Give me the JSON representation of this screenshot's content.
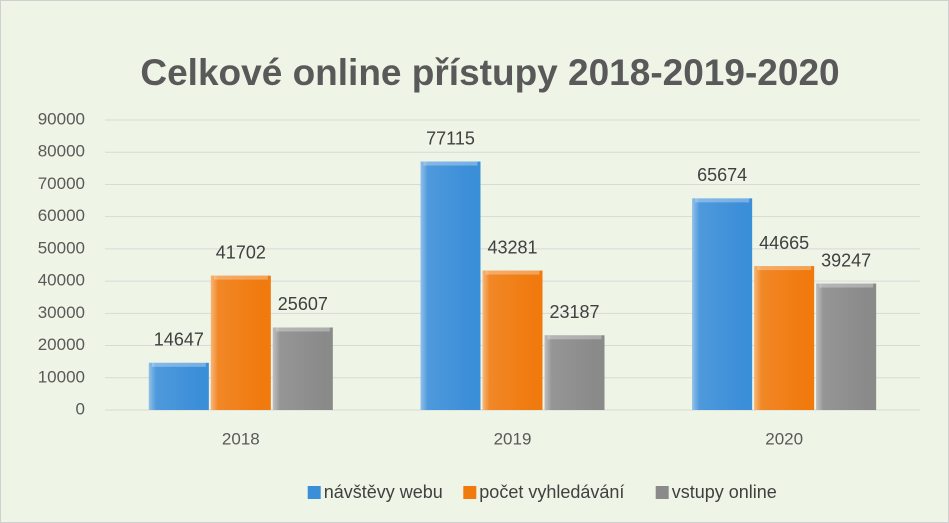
{
  "chart_data": {
    "type": "bar",
    "title": "Celkové online přístupy 2018-2019-2020",
    "categories": [
      "2018",
      "2019",
      "2020"
    ],
    "series": [
      {
        "name": "návštěvy webu",
        "color": "#3b8ed8",
        "values": [
          14647,
          77115,
          65674
        ]
      },
      {
        "name": "počet vyhledávání",
        "color": "#f07a0e",
        "values": [
          41702,
          43281,
          44665
        ]
      },
      {
        "name": "vstupy online",
        "color": "#8a8a8a",
        "values": [
          25607,
          23187,
          39247
        ]
      }
    ],
    "ylim": [
      0,
      90000
    ],
    "yticks": [
      0,
      10000,
      20000,
      30000,
      40000,
      50000,
      60000,
      70000,
      80000,
      90000
    ],
    "grid": true,
    "legend": "bottom"
  }
}
